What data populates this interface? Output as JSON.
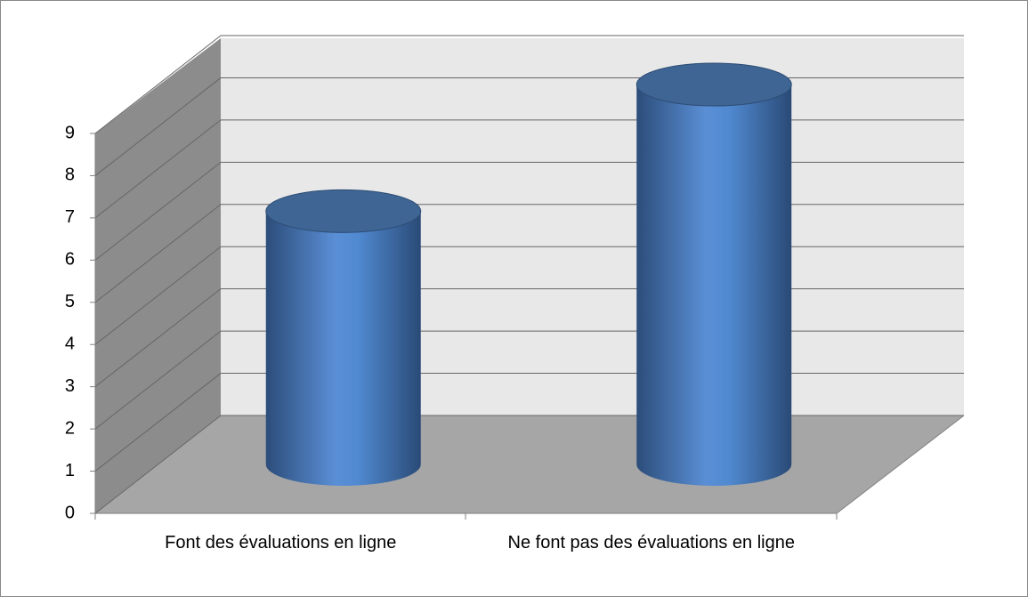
{
  "chart_data": {
    "type": "bar3d-cylinder",
    "categories": [
      "Font des évaluations en ligne",
      "Ne font pas des évaluations en ligne"
    ],
    "values": [
      6,
      9
    ],
    "color": "#4f81bd",
    "ylim": [
      0,
      9
    ],
    "yticks": [
      0,
      1,
      2,
      3,
      4,
      5,
      6,
      7,
      8,
      9
    ],
    "grid": true
  }
}
